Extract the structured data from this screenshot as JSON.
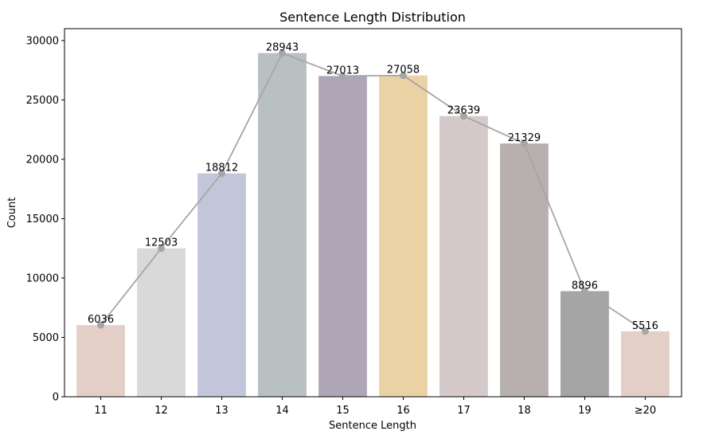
{
  "chart_data": {
    "type": "bar",
    "title": "Sentence Length Distribution",
    "xlabel": "Sentence Length",
    "ylabel": "Count",
    "categories": [
      "11",
      "12",
      "13",
      "14",
      "15",
      "16",
      "17",
      "18",
      "19",
      "≥20"
    ],
    "values": [
      6036,
      12503,
      18812,
      28943,
      27013,
      27058,
      23639,
      21329,
      8896,
      5516
    ],
    "value_labels": [
      "6036",
      "12503",
      "18812",
      "28943",
      "27013",
      "27058",
      "23639",
      "21329",
      "8896",
      "5516"
    ],
    "ylim": [
      0,
      31000
    ],
    "yticks": [
      0,
      5000,
      10000,
      15000,
      20000,
      25000,
      30000
    ],
    "ytick_labels": [
      "0",
      "5000",
      "10000",
      "15000",
      "20000",
      "25000",
      "30000"
    ],
    "bar_colors": [
      "#e3cfc7",
      "#d9d9d9",
      "#c3c6da",
      "#b8c0c1",
      "#aea6b7",
      "#ebd2a4",
      "#d6c9ca",
      "#b8afaf",
      "#a5a5a5",
      "#e3cfc7"
    ],
    "line_overlay": {
      "color": "#a6a6a6",
      "marker": "circle"
    },
    "grid": false,
    "legend": "none"
  }
}
